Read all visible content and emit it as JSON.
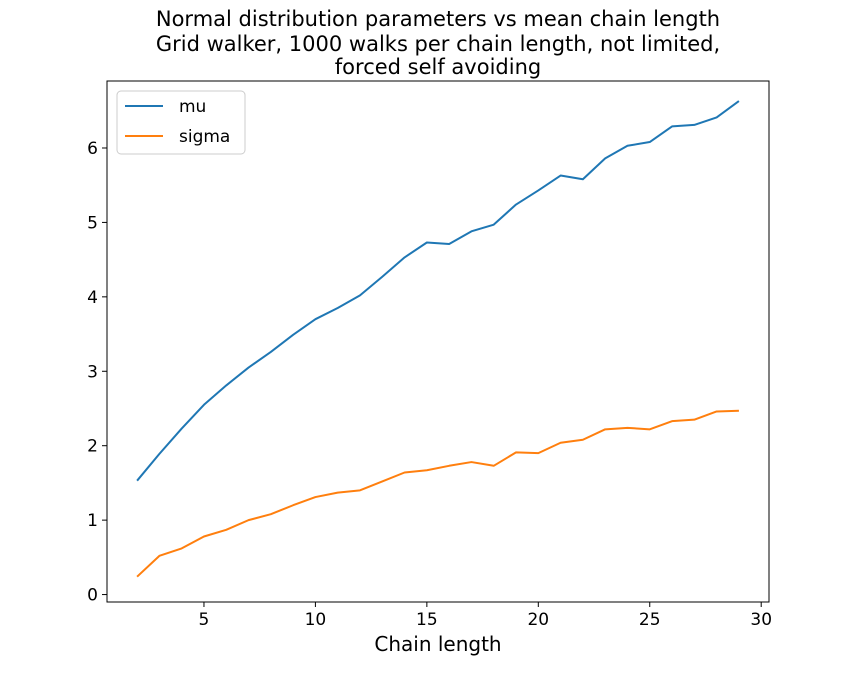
{
  "chart_data": {
    "type": "line",
    "title_lines": [
      "Normal distribution parameters vs mean chain length",
      "Grid walker, 1000 walks per chain length, not limited,",
      "forced self avoiding"
    ],
    "xlabel": "Chain length",
    "ylabel": "",
    "xlim": [
      0.65,
      30.35
    ],
    "ylim": [
      -0.1,
      6.9
    ],
    "xticks": [
      5,
      10,
      15,
      20,
      25,
      30
    ],
    "yticks": [
      0,
      1,
      2,
      3,
      4,
      5,
      6
    ],
    "grid": false,
    "legend_position": "upper-left",
    "x": [
      2,
      3,
      4,
      5,
      6,
      7,
      8,
      9,
      10,
      11,
      12,
      13,
      14,
      15,
      16,
      17,
      18,
      19,
      20,
      21,
      22,
      23,
      24,
      25,
      26,
      27,
      28,
      29
    ],
    "series": [
      {
        "name": "mu",
        "color": "#1f77b4",
        "values": [
          1.53,
          1.89,
          2.23,
          2.55,
          2.81,
          3.05,
          3.26,
          3.49,
          3.7,
          3.85,
          4.02,
          4.27,
          4.53,
          4.73,
          4.71,
          4.88,
          4.97,
          5.24,
          5.43,
          5.63,
          5.58,
          5.86,
          6.03,
          6.08,
          6.29,
          6.31,
          6.41,
          6.63
        ]
      },
      {
        "name": "sigma",
        "color": "#ff7f0e",
        "values": [
          0.24,
          0.52,
          0.62,
          0.78,
          0.87,
          1.0,
          1.08,
          1.2,
          1.31,
          1.37,
          1.4,
          1.52,
          1.64,
          1.67,
          1.73,
          1.78,
          1.73,
          1.91,
          1.9,
          2.04,
          2.08,
          2.22,
          2.24,
          2.22,
          2.33,
          2.35,
          2.46,
          2.47
        ]
      }
    ]
  }
}
